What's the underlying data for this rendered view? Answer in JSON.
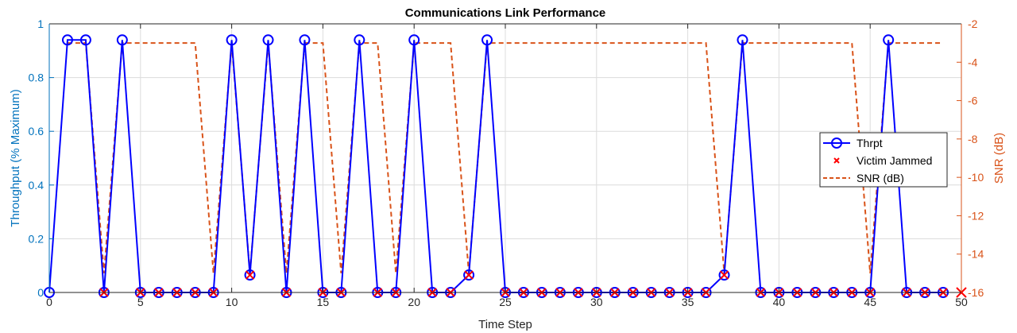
{
  "chart_data": {
    "type": "line",
    "title": "Communications Link Performance",
    "xlabel": "Time Step",
    "ylabel_left": "Throughput (% Maximum)",
    "ylabel_right": "SNR (dB)",
    "xlim": [
      0,
      50
    ],
    "ylim_left": [
      0,
      1
    ],
    "ylim_right": [
      -16,
      -2
    ],
    "x_ticks": [
      "0",
      "5",
      "10",
      "15",
      "20",
      "25",
      "30",
      "35",
      "40",
      "45",
      "50"
    ],
    "yl_ticks": [
      "0",
      "0.2",
      "0.4",
      "0.6",
      "0.8",
      "1"
    ],
    "yr_ticks": [
      "-2",
      "-4",
      "-6",
      "-8",
      "-10",
      "-12",
      "-14",
      "-16"
    ],
    "grid": true,
    "legend_position": "right",
    "colors": {
      "throughput": "#0000FF",
      "jammed": "#FF0000",
      "snr": "#D95319",
      "left_axis": "#0072BD",
      "right_axis": "#D95319",
      "grid": "#DCDCDC"
    },
    "series": [
      {
        "name": "Thrpt",
        "x": [
          0,
          1,
          2,
          3,
          4,
          5,
          6,
          7,
          8,
          9,
          10,
          11,
          12,
          13,
          14,
          15,
          16,
          17,
          18,
          19,
          20,
          21,
          22,
          23,
          24,
          25,
          26,
          27,
          28,
          29,
          30,
          31,
          32,
          33,
          34,
          35,
          36,
          37,
          38,
          39,
          40,
          41,
          42,
          43,
          44,
          45,
          46,
          47,
          48,
          49
        ],
        "values": [
          0,
          0.94,
          0.94,
          0,
          0.94,
          0,
          0,
          0,
          0,
          0,
          0.94,
          0.065,
          0.94,
          0,
          0.94,
          0,
          0,
          0.94,
          0,
          0,
          0.94,
          0,
          0,
          0.065,
          0.94,
          0,
          0,
          0,
          0,
          0,
          0,
          0,
          0,
          0,
          0,
          0,
          0,
          0.065,
          0.94,
          0,
          0,
          0,
          0,
          0,
          0,
          0,
          0.94,
          0,
          0,
          0
        ]
      },
      {
        "name": "Victim Jammed",
        "x": [
          3,
          5,
          6,
          7,
          8,
          9,
          11,
          13,
          15,
          16,
          18,
          19,
          21,
          22,
          23,
          25,
          26,
          27,
          28,
          29,
          30,
          31,
          32,
          33,
          34,
          35,
          36,
          37,
          39,
          40,
          41,
          42,
          43,
          44,
          45,
          47,
          48,
          49,
          50
        ],
        "values": [
          0,
          0,
          0,
          0,
          0,
          0,
          0.065,
          0,
          0,
          0,
          0,
          0,
          0,
          0,
          0.065,
          0,
          0,
          0,
          0,
          0,
          0,
          0,
          0,
          0,
          0,
          0,
          0,
          0.065,
          0,
          0,
          0,
          0,
          0,
          0,
          0,
          0,
          0,
          0,
          0
        ]
      },
      {
        "name": "SNR (dB)",
        "x": [
          1,
          2,
          3,
          4,
          5,
          6,
          7,
          8,
          9,
          10,
          11,
          12,
          13,
          14,
          15,
          16,
          17,
          18,
          19,
          20,
          21,
          22,
          23,
          24,
          25,
          26,
          27,
          28,
          29,
          30,
          31,
          32,
          33,
          34,
          35,
          36,
          37,
          38,
          39,
          40,
          41,
          42,
          43,
          44,
          45,
          46,
          47,
          48,
          49
        ],
        "values": [
          -3,
          -3,
          -15,
          -3,
          -3,
          -3,
          -3,
          -3,
          -15,
          -3,
          -15,
          -3,
          -15,
          -3,
          -3,
          -15,
          -3,
          -3,
          -15,
          -3,
          -3,
          -3,
          -15,
          -3,
          -3,
          -3,
          -3,
          -3,
          -3,
          -3,
          -3,
          -3,
          -3,
          -3,
          -3,
          -3,
          -15,
          -3,
          -3,
          -3,
          -3,
          -3,
          -3,
          -3,
          -15,
          -3,
          -3,
          -3,
          -3
        ]
      }
    ]
  }
}
